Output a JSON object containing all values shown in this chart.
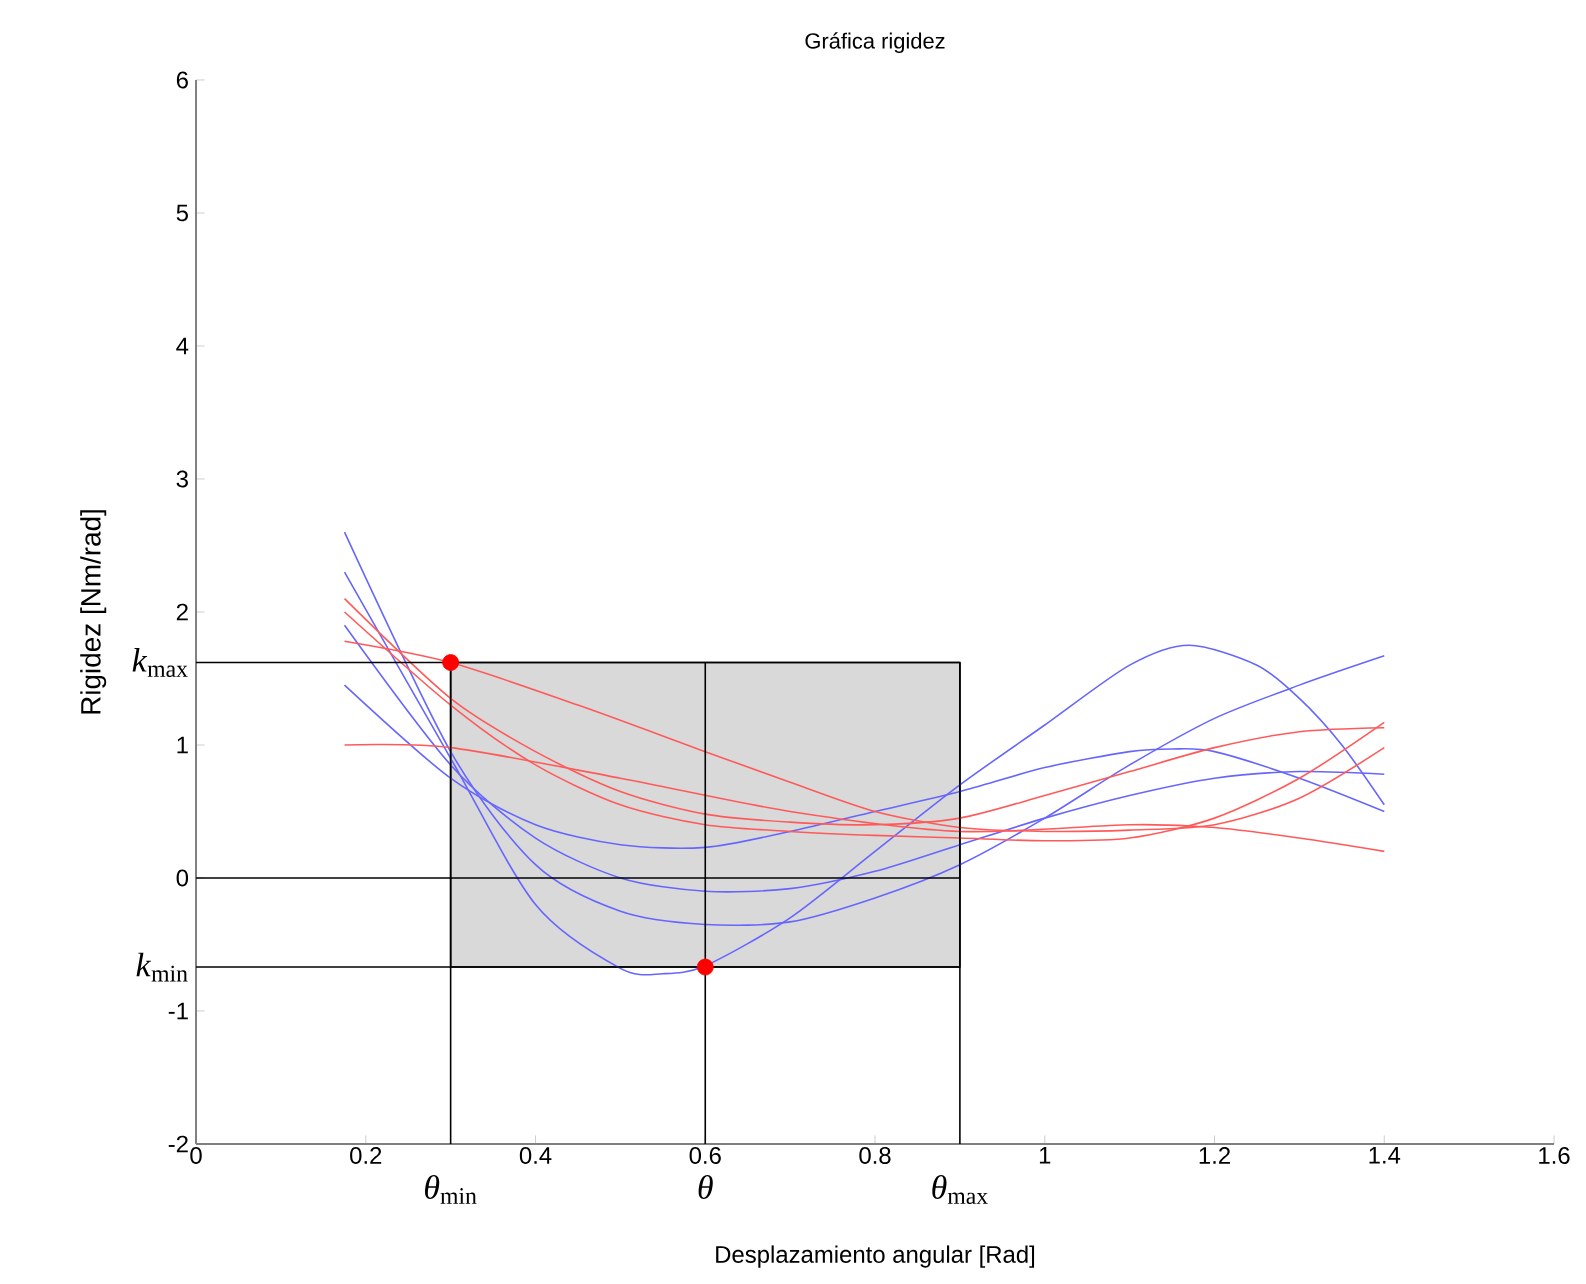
{
  "chart_data": {
    "type": "line",
    "title": "Gráfica rigidez",
    "xlabel": "Desplazamiento angular [Rad]",
    "ylabel": "Rigidez [Nm/rad]",
    "xlim": [
      0,
      1.6
    ],
    "ylim": [
      -2,
      6
    ],
    "xticks": [
      0,
      0.2,
      0.4,
      0.6,
      0.8,
      1,
      1.2,
      1.4,
      1.6
    ],
    "yticks": [
      -2,
      -1,
      0,
      1,
      2,
      3,
      4,
      5,
      6
    ],
    "grid": false,
    "series": [
      {
        "color": "#6666ff",
        "x": [
          0.175,
          0.3,
          0.4,
          0.5,
          0.55,
          0.6,
          0.7,
          0.8,
          0.9,
          1.0,
          1.1,
          1.17,
          1.25,
          1.3,
          1.35,
          1.4
        ],
        "values": [
          2.3,
          0.9,
          -0.2,
          -0.68,
          -0.72,
          -0.66,
          -0.3,
          0.2,
          0.7,
          1.15,
          1.6,
          1.75,
          1.6,
          1.35,
          1.0,
          0.55
        ]
      },
      {
        "color": "#6666ff",
        "x": [
          0.175,
          0.3,
          0.4,
          0.5,
          0.6,
          0.7,
          0.8,
          0.9,
          1.0,
          1.1,
          1.15,
          1.2,
          1.3,
          1.4
        ],
        "values": [
          1.45,
          0.75,
          0.4,
          0.25,
          0.23,
          0.35,
          0.5,
          0.65,
          0.83,
          0.95,
          0.97,
          0.95,
          0.75,
          0.5
        ]
      },
      {
        "color": "#6666ff",
        "x": [
          0.175,
          0.3,
          0.4,
          0.5,
          0.6,
          0.7,
          0.8,
          0.9,
          1.0,
          1.1,
          1.2,
          1.3,
          1.4
        ],
        "values": [
          1.9,
          0.85,
          0.3,
          0.0,
          -0.1,
          -0.08,
          0.05,
          0.25,
          0.45,
          0.62,
          0.75,
          0.8,
          0.78
        ]
      },
      {
        "color": "#6666ff",
        "x": [
          0.175,
          0.3,
          0.4,
          0.5,
          0.6,
          0.7,
          0.8,
          0.9,
          1.0,
          1.1,
          1.2,
          1.3,
          1.4
        ],
        "values": [
          2.6,
          0.95,
          0.1,
          -0.25,
          -0.35,
          -0.33,
          -0.15,
          0.1,
          0.45,
          0.85,
          1.2,
          1.45,
          1.67
        ]
      },
      {
        "color": "#ff5a5a",
        "x": [
          0.175,
          0.3,
          0.45,
          0.6,
          0.7,
          0.8,
          0.9,
          1.0,
          1.1,
          1.2,
          1.3,
          1.4
        ],
        "values": [
          1.78,
          1.62,
          1.3,
          0.95,
          0.72,
          0.5,
          0.38,
          0.35,
          0.36,
          0.4,
          0.6,
          0.98
        ]
      },
      {
        "color": "#ff5a5a",
        "x": [
          0.175,
          0.3,
          0.5,
          0.7,
          0.9,
          1.1,
          1.2,
          1.3,
          1.4
        ],
        "values": [
          1.0,
          0.98,
          0.75,
          0.5,
          0.35,
          0.4,
          0.38,
          0.3,
          0.2
        ]
      },
      {
        "color": "#ff5a5a",
        "x": [
          0.175,
          0.3,
          0.4,
          0.5,
          0.6,
          0.7,
          0.8,
          0.9,
          1.0,
          1.1,
          1.2,
          1.3,
          1.4
        ],
        "values": [
          2.1,
          1.35,
          0.95,
          0.65,
          0.48,
          0.42,
          0.4,
          0.45,
          0.62,
          0.8,
          0.98,
          1.1,
          1.13
        ]
      },
      {
        "color": "#ff5a5a",
        "x": [
          0.175,
          0.3,
          0.4,
          0.5,
          0.6,
          0.7,
          0.8,
          0.9,
          1.0,
          1.1,
          1.2,
          1.3,
          1.4
        ],
        "values": [
          2.0,
          1.3,
          0.85,
          0.55,
          0.4,
          0.35,
          0.32,
          0.3,
          0.28,
          0.3,
          0.45,
          0.75,
          1.17
        ]
      },
      {
        "type": "scatter",
        "color": "#ff0000",
        "x": [
          0.3,
          0.6
        ],
        "values": [
          1.62,
          -0.67
        ]
      }
    ],
    "bands": [
      {
        "axis": "x",
        "from": 0.3,
        "to": 0.9,
        "color": "#d9d9d9"
      }
    ],
    "ref_lines": [
      {
        "axis": "y",
        "value": 1.62,
        "label": "*k*$_{max}$",
        "color": "#000000"
      },
      {
        "axis": "y",
        "value": 0,
        "color": "#000000"
      },
      {
        "axis": "y",
        "value": -0.67,
        "label": "*k*$_{min}$",
        "color": "#000000"
      },
      {
        "axis": "x",
        "value": 0.3,
        "label": "*θ*$_{min}$",
        "color": "#000000"
      },
      {
        "axis": "x",
        "value": 0.6,
        "label": "*θ*",
        "color": "#000000"
      },
      {
        "axis": "x",
        "value": 0.9,
        "label": "*θ*$_{max}$",
        "color": "#000000"
      }
    ]
  }
}
